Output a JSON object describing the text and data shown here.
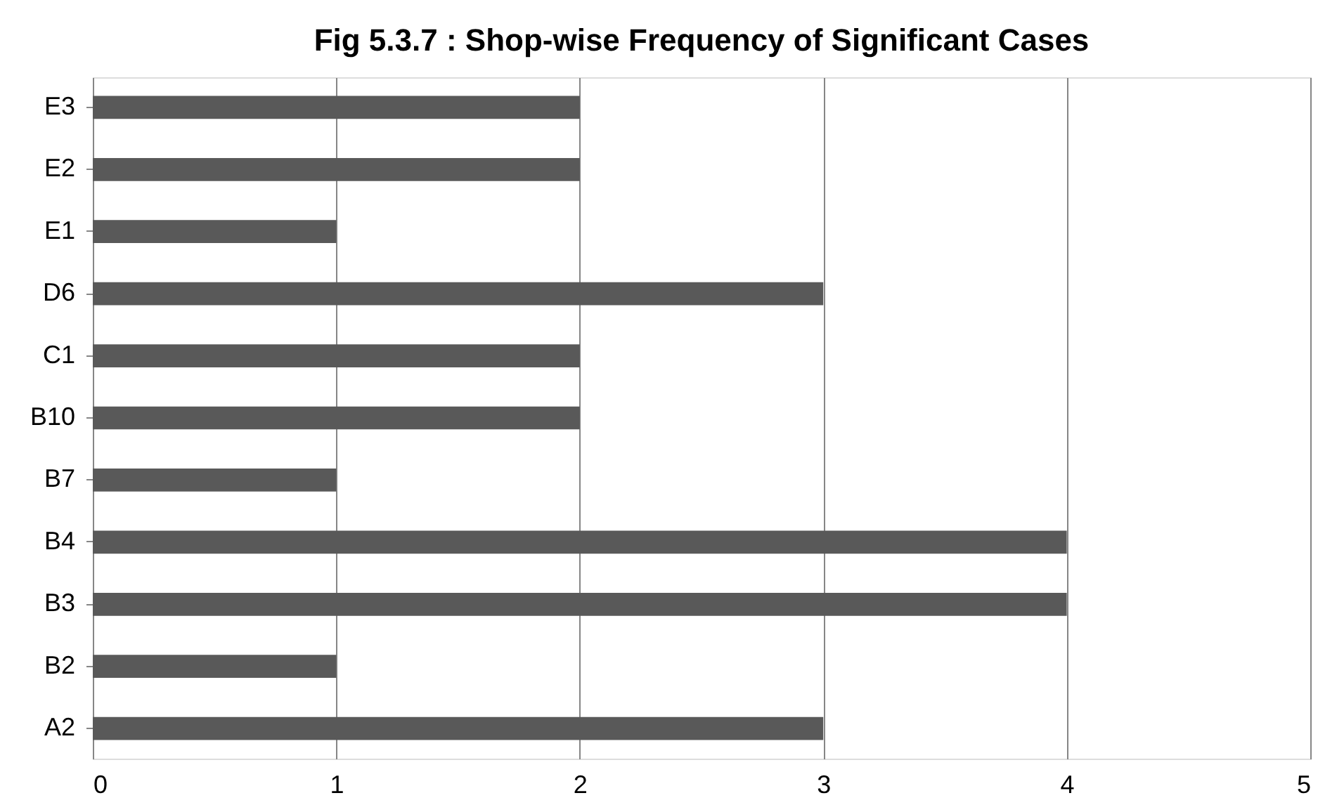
{
  "chart_data": {
    "type": "bar",
    "orientation": "horizontal",
    "title": "Fig 5.3.7 : Shop-wise Frequency of Significant Cases",
    "categories": [
      "E3",
      "E2",
      "E1",
      "D6",
      "C1",
      "B10",
      "B7",
      "B4",
      "B3",
      "B2",
      "A2"
    ],
    "values": [
      2,
      2,
      1,
      3,
      2,
      2,
      1,
      4,
      4,
      1,
      3
    ],
    "color": "#595959",
    "xlim": [
      0,
      5
    ],
    "xticks": [
      0,
      1,
      2,
      3,
      4,
      5
    ],
    "grid": "x"
  }
}
